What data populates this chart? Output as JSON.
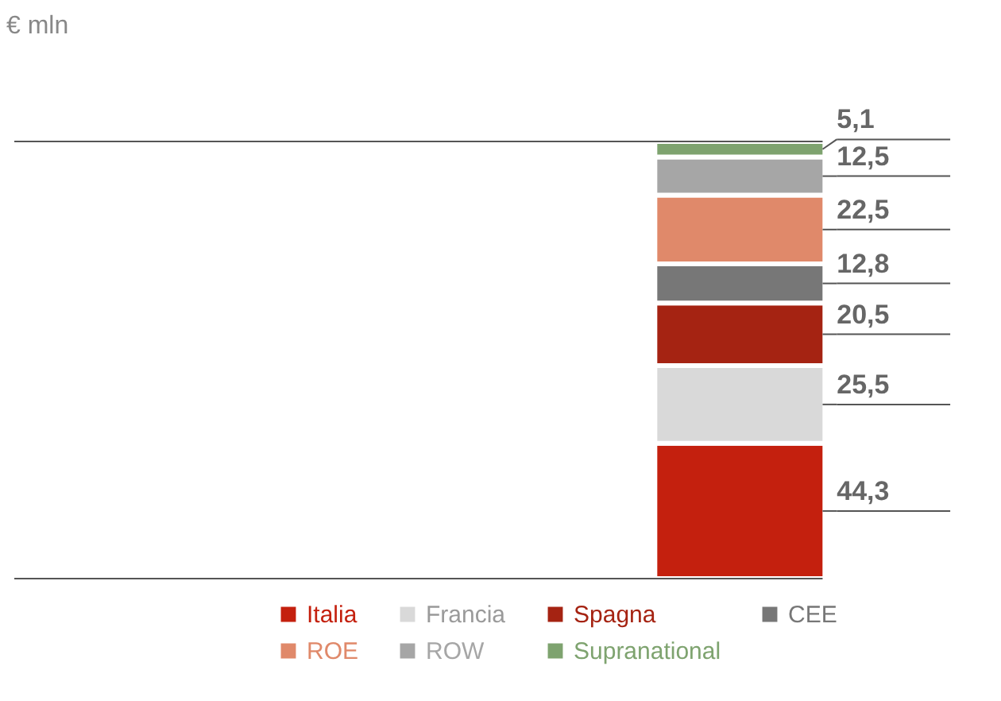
{
  "chart_data": {
    "type": "bar",
    "stacked": true,
    "annotations": [
      "€ mln"
    ],
    "categories": [
      null
    ],
    "legend": "bottom",
    "series": [
      {
        "name": "Italia",
        "color": "#c4200e",
        "values": [
          44.3
        ],
        "value_labels": [
          "44,3"
        ]
      },
      {
        "name": "Francia",
        "color": "#d9d9d9",
        "values": [
          25.5
        ],
        "value_labels": [
          "25,5"
        ]
      },
      {
        "name": "Spagna",
        "color": "#a52312",
        "values": [
          20.5
        ],
        "value_labels": [
          "20,5"
        ]
      },
      {
        "name": "CEE",
        "color": "#777777",
        "values": [
          12.8
        ],
        "value_labels": [
          "12,8"
        ]
      },
      {
        "name": "ROE",
        "color": "#e0896a",
        "values": [
          22.5
        ],
        "value_labels": [
          "22,5"
        ]
      },
      {
        "name": "ROW",
        "color": "#a6a6a6",
        "values": [
          12.5
        ],
        "value_labels": [
          "12,5"
        ]
      },
      {
        "name": "Supranational",
        "color": "#7ea36f",
        "values": [
          5.1
        ],
        "value_labels": [
          "5,1"
        ]
      }
    ],
    "ref_lines": [
      {
        "axis": "y",
        "value": 143.2,
        "color": "#555555"
      }
    ]
  }
}
